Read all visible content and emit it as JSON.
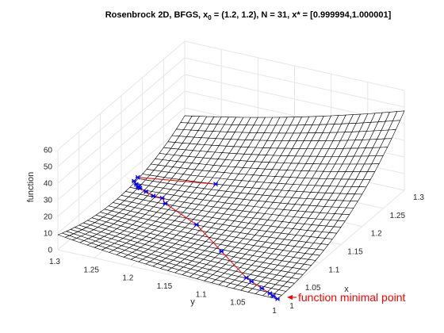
{
  "chart_data": {
    "type": "surface",
    "title_prefix": "Rosenbrock 2D, BFGS, x",
    "title_sub": "0",
    "title_suffix": " = (1.2, 1.2), N = 31, x* = [0.999994,1.000001]",
    "xlabel": "x",
    "ylabel": "y",
    "zlabel": "function",
    "xlim": [
      1,
      1.3
    ],
    "ylim": [
      1,
      1.3
    ],
    "zlim": [
      0,
      60
    ],
    "x_ticks": [
      "1",
      "1.05",
      "1.1",
      "1.15",
      "1.2",
      "1.25",
      "1.3"
    ],
    "y_ticks": [
      "1",
      "1.05",
      "1.1",
      "1.15",
      "1.2",
      "1.25",
      "1.3"
    ],
    "z_ticks": [
      "0",
      "10",
      "20",
      "30",
      "40",
      "50",
      "60"
    ],
    "grid": true,
    "mesh_resolution": 30,
    "surface": {
      "function": "(1-x)^2 + 100*(y-x^2)^2"
    },
    "path_color": "#ff0000",
    "marker_color": "#0000ff",
    "path": [
      {
        "x": 1.2,
        "y": 1.2,
        "z": 5.8
      },
      {
        "x": 1.189,
        "y": 1.3,
        "z": 2.4
      },
      {
        "x": 1.18,
        "y": 1.3,
        "z": 2.1
      },
      {
        "x": 1.175,
        "y": 1.294,
        "z": 1.8
      },
      {
        "x": 1.172,
        "y": 1.29,
        "z": 1.6
      },
      {
        "x": 1.171,
        "y": 1.288,
        "z": 1.5
      },
      {
        "x": 1.17,
        "y": 1.286,
        "z": 1.45
      },
      {
        "x": 1.165,
        "y": 1.275,
        "z": 1.4
      },
      {
        "x": 1.16,
        "y": 1.262,
        "z": 1.3
      },
      {
        "x": 1.16,
        "y": 1.25,
        "z": 1.2
      },
      {
        "x": 1.15,
        "y": 1.24,
        "z": 1.1
      },
      {
        "x": 1.12,
        "y": 1.18,
        "z": 0.8
      },
      {
        "x": 1.075,
        "y": 1.12,
        "z": 0.5
      },
      {
        "x": 1.03,
        "y": 1.06,
        "z": 0.3
      },
      {
        "x": 1.025,
        "y": 1.05,
        "z": 0.2
      },
      {
        "x": 1.015,
        "y": 1.03,
        "z": 0.1
      },
      {
        "x": 1.008,
        "y": 1.015,
        "z": 0.05
      },
      {
        "x": 1.004,
        "y": 1.008,
        "z": 0.02
      },
      {
        "x": 1.0,
        "y": 1.0,
        "z": 0.0
      }
    ],
    "annotation": {
      "text": "function minimal point",
      "color": "#ff0000"
    }
  }
}
